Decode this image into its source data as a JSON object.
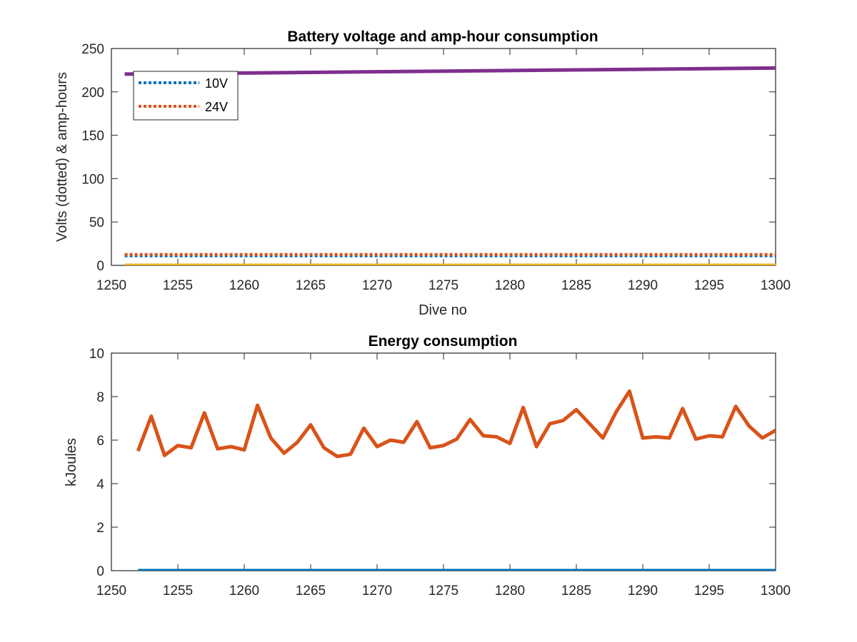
{
  "chart_data": [
    {
      "type": "line",
      "title": "Battery voltage and amp-hour consumption",
      "xlabel": "Dive no",
      "ylabel": "Volts (dotted) & amp-hours",
      "xlim": [
        1250,
        1300
      ],
      "ylim": [
        0,
        250
      ],
      "xticks": [
        1250,
        1255,
        1260,
        1265,
        1270,
        1275,
        1280,
        1285,
        1290,
        1295,
        1300
      ],
      "yticks": [
        0,
        50,
        100,
        150,
        200,
        250
      ],
      "legend_position": "top-left",
      "series": [
        {
          "name": "10V",
          "style": "dotted",
          "color": "#0072BD",
          "x": [
            1251,
            1300
          ],
          "values": [
            11,
            11
          ]
        },
        {
          "name": "24V",
          "style": "dotted",
          "color": "#D95319",
          "x": [
            1251,
            1300
          ],
          "values": [
            12.5,
            12.5
          ]
        },
        {
          "style": "solid",
          "color": "#EDB120",
          "x": [
            1251,
            1300
          ],
          "values": [
            0,
            0
          ]
        },
        {
          "style": "solid",
          "color": "#7E2F8E",
          "x": [
            1251,
            1300
          ],
          "values": [
            220.5,
            227.5
          ]
        }
      ]
    },
    {
      "type": "line",
      "title": "Energy consumption",
      "xlabel": "",
      "ylabel": "kJoules",
      "xlim": [
        1250,
        1300
      ],
      "ylim": [
        0,
        10
      ],
      "xticks": [
        1250,
        1255,
        1260,
        1265,
        1270,
        1275,
        1280,
        1285,
        1290,
        1295,
        1300
      ],
      "yticks": [
        0,
        2,
        4,
        6,
        8,
        10
      ],
      "series": [
        {
          "style": "solid",
          "color": "#0072BD",
          "x": [
            1252,
            1300
          ],
          "values": [
            0,
            0
          ]
        },
        {
          "style": "solid",
          "color": "#D95319",
          "x": [
            1252,
            1253,
            1254,
            1255,
            1256,
            1257,
            1258,
            1259,
            1260,
            1261,
            1262,
            1263,
            1264,
            1265,
            1266,
            1267,
            1268,
            1269,
            1270,
            1271,
            1272,
            1273,
            1274,
            1275,
            1276,
            1277,
            1278,
            1279,
            1280,
            1281,
            1282,
            1283,
            1284,
            1285,
            1286,
            1287,
            1288,
            1289,
            1290,
            1291,
            1292,
            1293,
            1294,
            1295,
            1296,
            1297,
            1298,
            1299,
            1300
          ],
          "values": [
            5.5,
            7.1,
            5.3,
            5.75,
            5.65,
            7.25,
            5.6,
            5.7,
            5.55,
            7.6,
            6.1,
            5.4,
            5.9,
            6.7,
            5.65,
            5.25,
            5.35,
            6.55,
            5.7,
            6.0,
            5.9,
            6.85,
            5.65,
            5.75,
            6.05,
            6.95,
            6.2,
            6.15,
            5.85,
            7.5,
            5.7,
            6.75,
            6.9,
            7.4,
            6.75,
            6.1,
            7.3,
            8.25,
            6.1,
            6.15,
            6.1,
            7.45,
            6.05,
            6.2,
            6.15,
            7.55,
            6.65,
            6.1,
            6.45
          ]
        }
      ]
    }
  ]
}
